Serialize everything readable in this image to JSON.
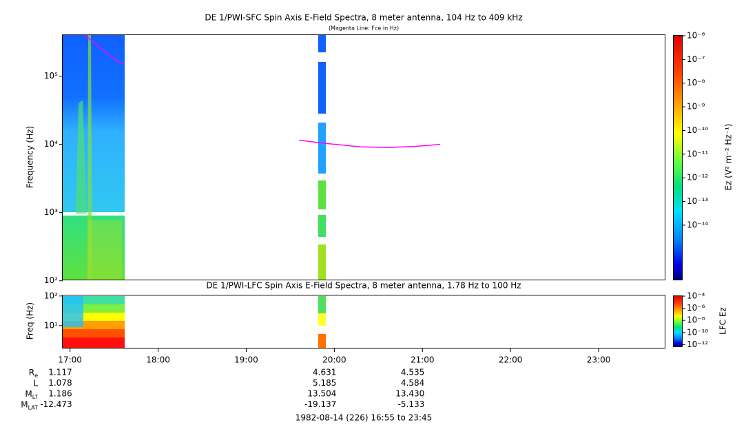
{
  "chart_data": [
    {
      "type": "heatmap",
      "title": "DE 1/PWI-SFC  Spin Axis E-Field Spectra, 8 meter antenna, 104 Hz to 409 kHz",
      "subtitle": "(Magenta Line: Fce in Hz)",
      "y_label": "Frequency (Hz)",
      "log_y": true,
      "ylim": [
        104,
        409000
      ],
      "yticks": [
        {
          "value": 100,
          "label": "10²"
        },
        {
          "value": 1000,
          "label": "10³"
        },
        {
          "value": 10000,
          "label": "10⁴"
        },
        {
          "value": 100000,
          "label": "10⁵"
        }
      ],
      "xlim": [
        16.9167,
        23.75
      ],
      "colorbar_label": "Ez (V² m⁻² Hz⁻¹)",
      "clim": [
        5e-17,
        1e-06
      ],
      "cticks": [
        {
          "value": 1e-06,
          "label": "10⁻⁶"
        },
        {
          "value": 1e-07,
          "label": "10⁻⁷"
        },
        {
          "value": 1e-08,
          "label": "10⁻⁸"
        },
        {
          "value": 1e-09,
          "label": "10⁻⁹"
        },
        {
          "value": 1e-10,
          "label": "10⁻¹⁰"
        },
        {
          "value": 1e-11,
          "label": "10⁻¹¹"
        },
        {
          "value": 1e-12,
          "label": "10⁻¹²"
        },
        {
          "value": 1e-13,
          "label": "10⁻¹³"
        },
        {
          "value": 1e-14,
          "label": "10⁻¹⁴"
        }
      ],
      "series": [
        {
          "color": "#ff00ff",
          "x": [
            17.17,
            17.3,
            17.45,
            17.6,
            null,
            19.6,
            19.9,
            20.3,
            20.6,
            20.9,
            21.2
          ],
          "values": [
            400000,
            290000,
            200000,
            150000,
            null,
            11500,
            10300,
            9200,
            9000,
            9300,
            10000
          ]
        }
      ]
    },
    {
      "type": "heatmap",
      "title": "DE 1/PWI-LFC  Spin Axis E-Field Spectra, 8 meter antenna, 1.78 Hz to 100 Hz",
      "y_label": "Freq (Hz)",
      "log_y": true,
      "ylim": [
        1.78,
        110
      ],
      "yticks": [
        {
          "value": 10,
          "label": "10¹"
        },
        {
          "value": 100,
          "label": "10²"
        }
      ],
      "xlim": [
        16.9167,
        23.75
      ],
      "xticks": [
        {
          "value": 17,
          "label": "17:00"
        },
        {
          "value": 18,
          "label": "18:00"
        },
        {
          "value": 19,
          "label": "19:00"
        },
        {
          "value": 20,
          "label": "20:00"
        },
        {
          "value": 21,
          "label": "21:00"
        },
        {
          "value": 22,
          "label": "22:00"
        },
        {
          "value": 23,
          "label": "23:00"
        }
      ],
      "colorbar_label": "LFC Ez",
      "clim": [
        5e-13,
        0.0001
      ],
      "cticks": [
        {
          "value": 0.0001,
          "label": "10⁻⁴"
        },
        {
          "value": 1e-06,
          "label": "10⁻⁶"
        },
        {
          "value": 1e-08,
          "label": "10⁻⁸"
        },
        {
          "value": 1e-10,
          "label": "10⁻¹⁰"
        },
        {
          "value": 1e-12,
          "label": "10⁻¹²"
        }
      ]
    }
  ],
  "ephemeris": {
    "x": [
      17,
      20,
      21
    ],
    "rows": [
      {
        "label": "R",
        "sub": "e",
        "values": [
          "1.117",
          "4.631",
          "4.535"
        ]
      },
      {
        "label": "L",
        "values": [
          "1.078",
          "5.185",
          "4.584"
        ]
      },
      {
        "label": "M",
        "sub": "LT",
        "values": [
          "1.186",
          "13.504",
          "13.430"
        ]
      },
      {
        "label": "M",
        "sub": "LAT",
        "values": [
          "-12.473",
          "-19.137",
          "-5.133"
        ]
      }
    ]
  },
  "footer": "1982-08-14 (226) 16:55 to 23:45"
}
